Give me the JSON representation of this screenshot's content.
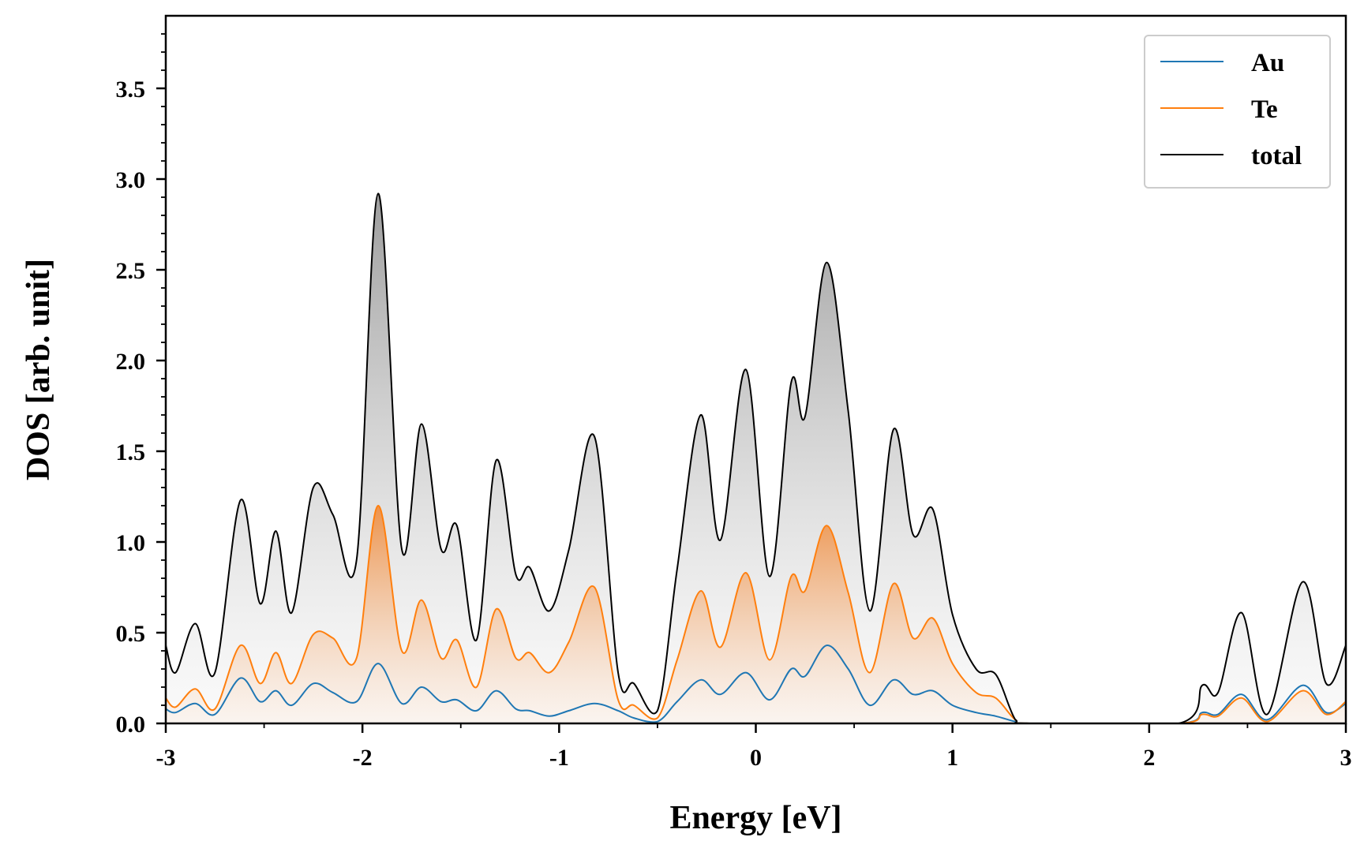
{
  "chart_data": {
    "type": "line",
    "xlabel": "Energy [eV]",
    "ylabel": "DOS [arb. unit]",
    "xlim": [
      -3,
      3
    ],
    "ylim": [
      0,
      3.9
    ],
    "xticks": [
      {
        "v": -3,
        "label": "-3"
      },
      {
        "v": -2,
        "label": "-2"
      },
      {
        "v": -1,
        "label": "-1"
      },
      {
        "v": 0,
        "label": "0"
      },
      {
        "v": 1,
        "label": "1"
      },
      {
        "v": 2,
        "label": "2"
      },
      {
        "v": 3,
        "label": "3"
      }
    ],
    "yticks": [
      {
        "v": 0.0,
        "label": "0.0"
      },
      {
        "v": 0.5,
        "label": "0.5"
      },
      {
        "v": 1.0,
        "label": "1.0"
      },
      {
        "v": 1.5,
        "label": "1.5"
      },
      {
        "v": 2.0,
        "label": "2.0"
      },
      {
        "v": 2.5,
        "label": "2.5"
      },
      {
        "v": 3.0,
        "label": "3.0"
      },
      {
        "v": 3.5,
        "label": "3.5"
      }
    ],
    "legend_position": "top-right",
    "series": [
      {
        "name": "Au",
        "color": "#1f77b4",
        "fill": false,
        "points": [
          [
            -3.0,
            0.08
          ],
          [
            -2.95,
            0.06
          ],
          [
            -2.85,
            0.11
          ],
          [
            -2.75,
            0.05
          ],
          [
            -2.62,
            0.25
          ],
          [
            -2.52,
            0.12
          ],
          [
            -2.44,
            0.18
          ],
          [
            -2.36,
            0.1
          ],
          [
            -2.25,
            0.22
          ],
          [
            -2.15,
            0.17
          ],
          [
            -2.03,
            0.12
          ],
          [
            -1.92,
            0.33
          ],
          [
            -1.8,
            0.11
          ],
          [
            -1.7,
            0.2
          ],
          [
            -1.6,
            0.12
          ],
          [
            -1.52,
            0.13
          ],
          [
            -1.42,
            0.07
          ],
          [
            -1.32,
            0.18
          ],
          [
            -1.22,
            0.08
          ],
          [
            -1.15,
            0.07
          ],
          [
            -1.05,
            0.04
          ],
          [
            -0.95,
            0.07
          ],
          [
            -0.82,
            0.11
          ],
          [
            -0.7,
            0.07
          ],
          [
            -0.62,
            0.03
          ],
          [
            -0.5,
            0.01
          ],
          [
            -0.4,
            0.12
          ],
          [
            -0.28,
            0.24
          ],
          [
            -0.18,
            0.16
          ],
          [
            -0.05,
            0.28
          ],
          [
            0.07,
            0.13
          ],
          [
            0.18,
            0.3
          ],
          [
            0.25,
            0.26
          ],
          [
            0.36,
            0.43
          ],
          [
            0.47,
            0.3
          ],
          [
            0.58,
            0.1
          ],
          [
            0.7,
            0.24
          ],
          [
            0.8,
            0.16
          ],
          [
            0.9,
            0.18
          ],
          [
            1.0,
            0.1
          ],
          [
            1.12,
            0.06
          ],
          [
            1.22,
            0.04
          ],
          [
            1.32,
            0.01
          ],
          [
            1.4,
            0.0
          ],
          [
            2.15,
            0.0
          ],
          [
            2.27,
            0.06
          ],
          [
            2.35,
            0.05
          ],
          [
            2.47,
            0.16
          ],
          [
            2.6,
            0.02
          ],
          [
            2.78,
            0.21
          ],
          [
            2.9,
            0.06
          ],
          [
            3.0,
            0.11
          ]
        ]
      },
      {
        "name": "Te",
        "color": "#ff7f0e",
        "fill": true,
        "points": [
          [
            -3.0,
            0.14
          ],
          [
            -2.95,
            0.09
          ],
          [
            -2.85,
            0.19
          ],
          [
            -2.75,
            0.08
          ],
          [
            -2.62,
            0.43
          ],
          [
            -2.52,
            0.22
          ],
          [
            -2.44,
            0.39
          ],
          [
            -2.36,
            0.22
          ],
          [
            -2.25,
            0.49
          ],
          [
            -2.15,
            0.47
          ],
          [
            -2.03,
            0.36
          ],
          [
            -1.92,
            1.2
          ],
          [
            -1.8,
            0.4
          ],
          [
            -1.7,
            0.68
          ],
          [
            -1.6,
            0.36
          ],
          [
            -1.52,
            0.46
          ],
          [
            -1.42,
            0.2
          ],
          [
            -1.32,
            0.63
          ],
          [
            -1.22,
            0.36
          ],
          [
            -1.15,
            0.39
          ],
          [
            -1.05,
            0.28
          ],
          [
            -0.95,
            0.45
          ],
          [
            -0.82,
            0.75
          ],
          [
            -0.7,
            0.13
          ],
          [
            -0.62,
            0.1
          ],
          [
            -0.5,
            0.03
          ],
          [
            -0.4,
            0.35
          ],
          [
            -0.28,
            0.73
          ],
          [
            -0.18,
            0.42
          ],
          [
            -0.05,
            0.83
          ],
          [
            0.07,
            0.35
          ],
          [
            0.18,
            0.81
          ],
          [
            0.25,
            0.73
          ],
          [
            0.36,
            1.09
          ],
          [
            0.47,
            0.72
          ],
          [
            0.58,
            0.28
          ],
          [
            0.7,
            0.77
          ],
          [
            0.8,
            0.47
          ],
          [
            0.9,
            0.58
          ],
          [
            1.0,
            0.33
          ],
          [
            1.12,
            0.17
          ],
          [
            1.22,
            0.14
          ],
          [
            1.32,
            0.02
          ],
          [
            1.4,
            0.0
          ],
          [
            2.15,
            0.0
          ],
          [
            2.27,
            0.05
          ],
          [
            2.35,
            0.04
          ],
          [
            2.47,
            0.14
          ],
          [
            2.6,
            0.01
          ],
          [
            2.78,
            0.18
          ],
          [
            2.9,
            0.05
          ],
          [
            3.0,
            0.12
          ]
        ]
      },
      {
        "name": "total",
        "color": "#000000",
        "fill": true,
        "points": [
          [
            -3.0,
            0.43
          ],
          [
            -2.95,
            0.28
          ],
          [
            -2.85,
            0.55
          ],
          [
            -2.75,
            0.28
          ],
          [
            -2.62,
            1.23
          ],
          [
            -2.52,
            0.66
          ],
          [
            -2.44,
            1.06
          ],
          [
            -2.36,
            0.61
          ],
          [
            -2.25,
            1.3
          ],
          [
            -2.15,
            1.15
          ],
          [
            -2.03,
            0.9
          ],
          [
            -1.92,
            2.92
          ],
          [
            -1.8,
            0.96
          ],
          [
            -1.7,
            1.65
          ],
          [
            -1.6,
            0.96
          ],
          [
            -1.52,
            1.09
          ],
          [
            -1.42,
            0.46
          ],
          [
            -1.32,
            1.45
          ],
          [
            -1.22,
            0.82
          ],
          [
            -1.15,
            0.86
          ],
          [
            -1.05,
            0.62
          ],
          [
            -0.95,
            0.96
          ],
          [
            -0.82,
            1.58
          ],
          [
            -0.7,
            0.28
          ],
          [
            -0.62,
            0.22
          ],
          [
            -0.5,
            0.07
          ],
          [
            -0.4,
            0.85
          ],
          [
            -0.28,
            1.7
          ],
          [
            -0.18,
            1.01
          ],
          [
            -0.05,
            1.95
          ],
          [
            0.07,
            0.81
          ],
          [
            0.18,
            1.88
          ],
          [
            0.25,
            1.69
          ],
          [
            0.36,
            2.54
          ],
          [
            0.47,
            1.72
          ],
          [
            0.58,
            0.62
          ],
          [
            0.7,
            1.62
          ],
          [
            0.8,
            1.04
          ],
          [
            0.9,
            1.18
          ],
          [
            1.0,
            0.6
          ],
          [
            1.12,
            0.3
          ],
          [
            1.22,
            0.27
          ],
          [
            1.32,
            0.02
          ],
          [
            1.4,
            0.0
          ],
          [
            2.15,
            0.0
          ],
          [
            2.27,
            0.21
          ],
          [
            2.35,
            0.17
          ],
          [
            2.47,
            0.61
          ],
          [
            2.6,
            0.05
          ],
          [
            2.78,
            0.78
          ],
          [
            2.9,
            0.22
          ],
          [
            3.0,
            0.43
          ]
        ]
      }
    ]
  }
}
